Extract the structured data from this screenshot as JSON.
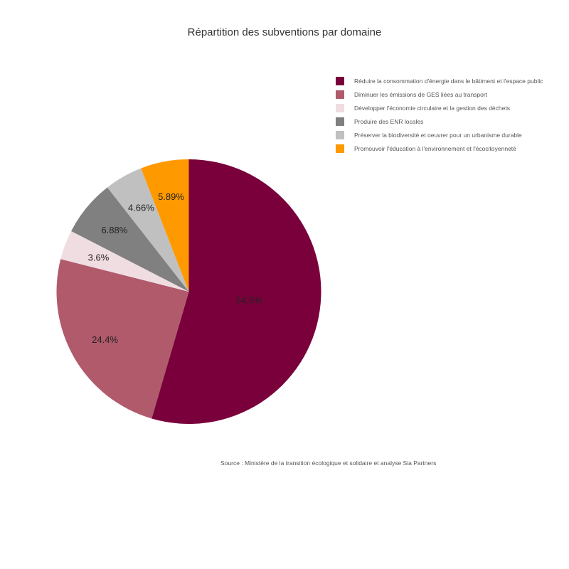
{
  "chart_data": {
    "type": "pie",
    "title": "Répartition des subventions par domaine",
    "source": "Source : Ministère de la transition écologique et solidaire et analyse Sia Partners",
    "legend_position": "top-right",
    "slices": [
      {
        "label": "Réduire la consommation d'énergie dans le bâtiment et l'espace public",
        "value": 54.5,
        "display": "54.5%",
        "color": "#7a003c"
      },
      {
        "label": "Diminuer les émissions de GES liées au transport",
        "value": 24.4,
        "display": "24.4%",
        "color": "#b05a6c"
      },
      {
        "label": "Développer l'économie circulaire et la gestion des déchets",
        "value": 3.6,
        "display": "3.6%",
        "color": "#f0dde1"
      },
      {
        "label": "Produire des ENR locales",
        "value": 6.88,
        "display": "6.88%",
        "color": "#808080"
      },
      {
        "label": "Préserver la biodiversité et oeuvrer pour un urbanisme durable",
        "value": 4.66,
        "display": "4.66%",
        "color": "#c0c0c0"
      },
      {
        "label": "Promouvoir l'éducation à l'environnement et l'écocitoyenneté",
        "value": 5.89,
        "display": "5.89%",
        "color": "#ff9900"
      }
    ]
  }
}
